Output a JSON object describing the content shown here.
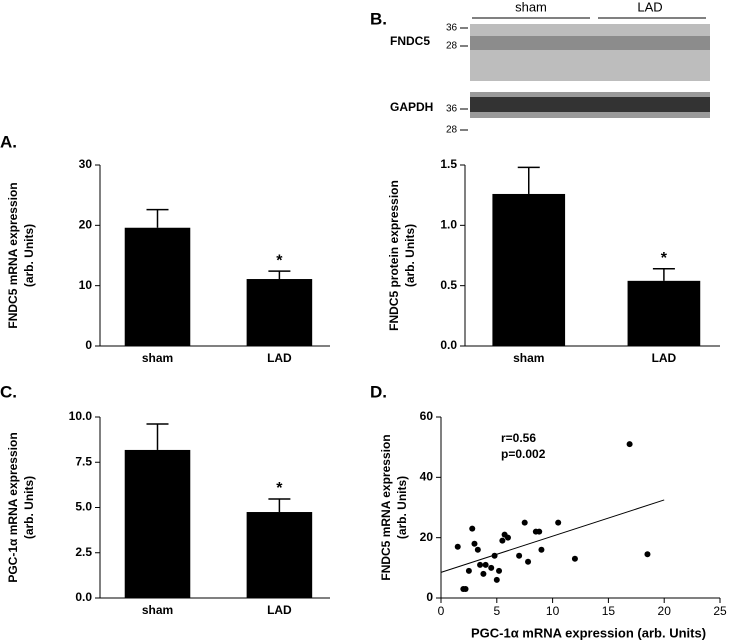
{
  "chart_data": [
    {
      "type": "bar",
      "label": "A.",
      "ylabel": [
        "FNDC5 mRNA expression",
        "(arb. Units)"
      ],
      "categories": [
        "sham",
        "LAD"
      ],
      "values": [
        19.6,
        11.1
      ],
      "errors": [
        3.0,
        1.3
      ],
      "significance": [
        null,
        "*"
      ],
      "color": "#000000",
      "ylim": [
        0,
        30
      ],
      "yticks": [
        0,
        10,
        20,
        30
      ]
    },
    {
      "type": "bar",
      "label": "B.",
      "ylabel": [
        "FNDC5 protein expression",
        "(arb. Units)"
      ],
      "categories": [
        "sham",
        "LAD"
      ],
      "values": [
        1.26,
        0.54
      ],
      "errors": [
        0.22,
        0.1
      ],
      "significance": [
        null,
        "*"
      ],
      "color": "#000000",
      "ylim": [
        0,
        1.5
      ],
      "yticks": [
        {
          "value": 0,
          "label": "0.0"
        },
        {
          "value": 0.5,
          "label": "0.5"
        },
        {
          "value": 1,
          "label": "1.0"
        },
        {
          "value": 1.5,
          "label": "1.5"
        }
      ]
    },
    {
      "type": "bar",
      "label": "C.",
      "ylabel": [
        "PGC-1α mRNA expression",
        "(arb. Units)"
      ],
      "categories": [
        "sham",
        "LAD"
      ],
      "values": [
        8.18,
        4.75
      ],
      "errors": [
        1.43,
        0.72
      ],
      "significance": [
        null,
        "*"
      ],
      "color": "#000000",
      "ylim": [
        0,
        10
      ],
      "yticks": [
        {
          "value": 0,
          "label": "0.0"
        },
        {
          "value": 2.5,
          "label": "2.5"
        },
        {
          "value": 5,
          "label": "5.0"
        },
        {
          "value": 7.5,
          "label": "7.5"
        },
        {
          "value": 10,
          "label": "10.0"
        }
      ]
    },
    {
      "type": "scatter",
      "label": "D.",
      "ylabel": [
        "FNDC5 mRNA expression",
        "(arb. Units)"
      ],
      "xlabel": "PGC-1α mRNA expression (arb. Units)",
      "annotations": [
        "r=0.56",
        "p=0.002"
      ],
      "x": [
        1.5,
        2,
        2.2,
        2.5,
        2.8,
        3,
        3.3,
        3.5,
        3.8,
        4,
        4.5,
        4.8,
        5,
        5.2,
        5.5,
        5.7,
        6,
        7,
        7.5,
        7.8,
        8.5,
        8.8,
        9,
        10.5,
        12,
        16.9,
        18.5
      ],
      "values": [
        17,
        3,
        3,
        9,
        23,
        18,
        16,
        11,
        8,
        11,
        10,
        14,
        6,
        9,
        19,
        21,
        20,
        14,
        25,
        12,
        22,
        22,
        16,
        25,
        13,
        51,
        14.5
      ],
      "trendline": {
        "x": [
          0,
          20
        ],
        "values": [
          8.5,
          32.5
        ]
      },
      "color": "#000000",
      "xlim": [
        0,
        25
      ],
      "xticks": [
        0,
        5,
        10,
        15,
        20,
        25
      ],
      "ylim": [
        0,
        60
      ],
      "yticks": [
        0,
        20,
        40,
        60
      ]
    }
  ],
  "blot": {
    "lanes": [
      "sham",
      "LAD"
    ],
    "proteins": [
      "FNDC5",
      "GAPDH"
    ],
    "markers_top": [
      "36",
      "28"
    ],
    "markers_bottom": [
      "36",
      "28"
    ]
  }
}
